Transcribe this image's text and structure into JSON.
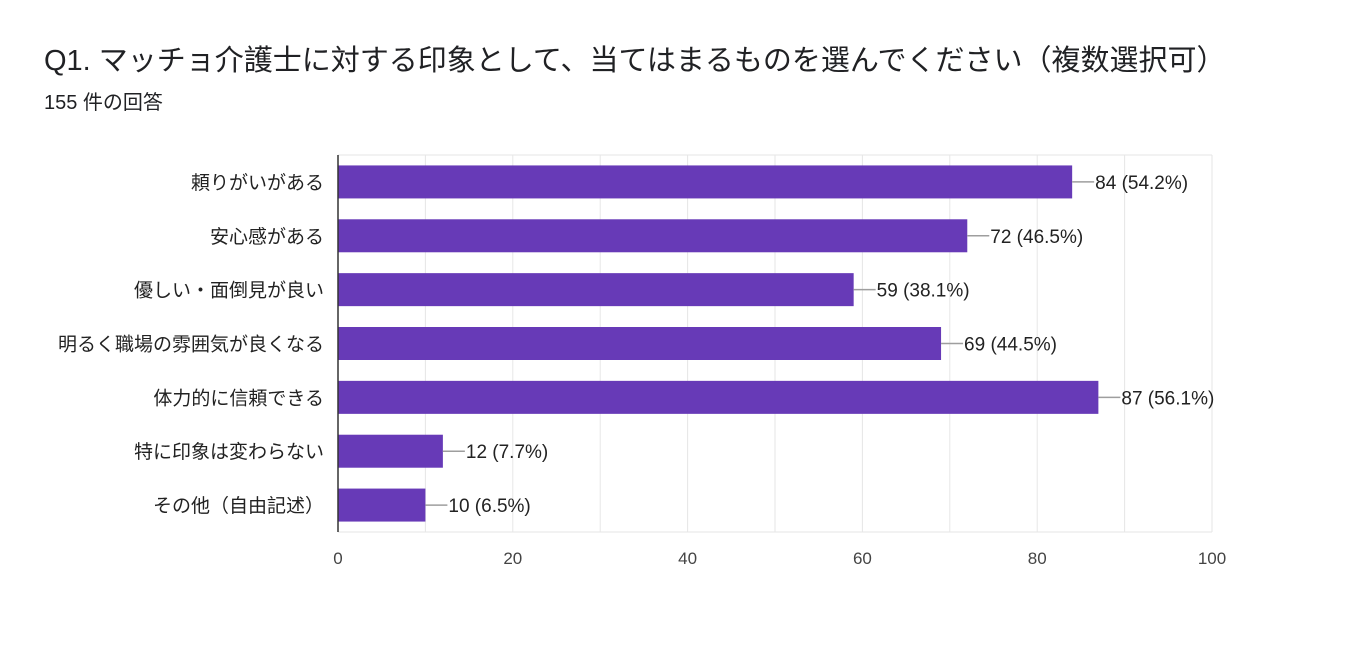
{
  "header": {
    "title": "Q1. マッチョ介護士に対する印象として、当てはまるものを選んでください（複数選択可）",
    "responses": "155 件の回答"
  },
  "colors": {
    "bar": "#673AB7",
    "grid": "#e6e6e6",
    "axis": "#333333",
    "connector": "#9e9e9e"
  },
  "chart_data": {
    "type": "bar",
    "orientation": "horizontal",
    "title": "Q1. マッチョ介護士に対する印象として、当てはまるものを選んでください（複数選択可）",
    "subtitle": "155 件の回答",
    "categories": [
      "頼りがいがある",
      "安心感がある",
      "優しい・面倒見が良い",
      "明るく職場の雰囲気が良くなる",
      "体力的に信頼できる",
      "特に印象は変わらない",
      "その他（自由記述）"
    ],
    "values": [
      84,
      72,
      59,
      69,
      87,
      12,
      10
    ],
    "data_labels": [
      "84 (54.2%)",
      "72 (46.5%)",
      "59 (38.1%)",
      "69 (44.5%)",
      "87 (56.1%)",
      "12 (7.7%)",
      "10 (6.5%)"
    ],
    "xlim": [
      0,
      100
    ],
    "xticks": [
      0,
      20,
      40,
      60,
      80,
      100
    ],
    "xlabel": "",
    "ylabel": "",
    "grid": true
  }
}
